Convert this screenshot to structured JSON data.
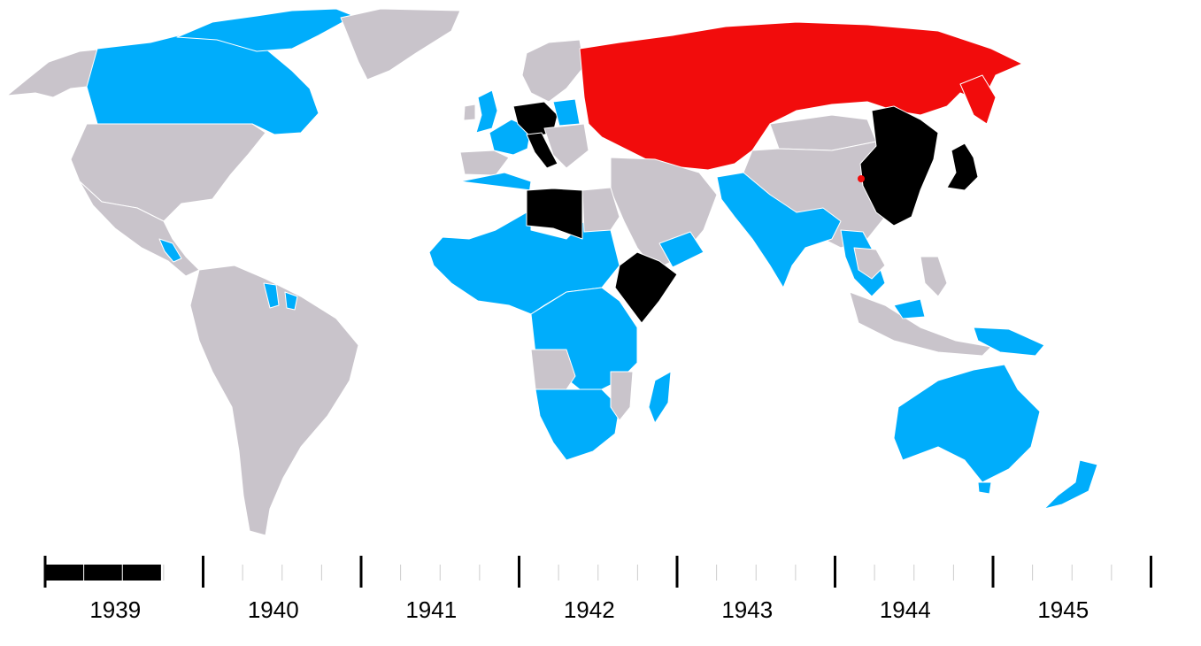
{
  "colors": {
    "background": "#ffffff",
    "neutral": "#c9c4cb",
    "allies_western": "#00adfb",
    "allies_soviet": "#f20c0c",
    "axis": "#000000",
    "borders": "#ffffff"
  },
  "timeline": {
    "years": [
      "1939",
      "1940",
      "1941",
      "1942",
      "1943",
      "1944",
      "1945"
    ],
    "progress_year": "1939",
    "progress_fraction": 0.75
  }
}
